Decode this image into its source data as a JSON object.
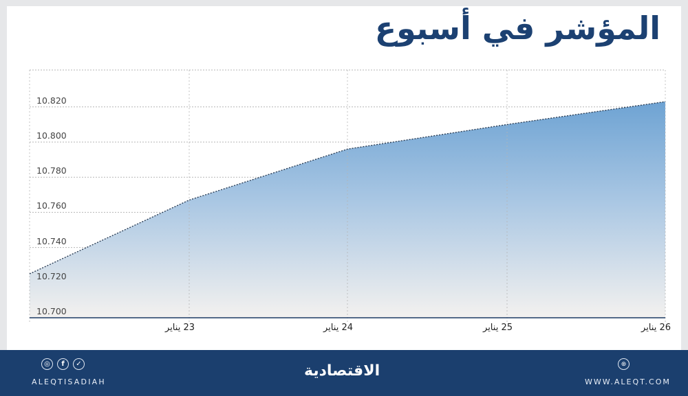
{
  "header": {
    "title": "المؤشر في أسبوع"
  },
  "chart_data": {
    "type": "area",
    "title": "المؤشر في أسبوع",
    "xlabel": "",
    "ylabel": "",
    "categories": [
      "",
      "23 يناير",
      "24 يناير",
      "25 يناير",
      "26 يناير"
    ],
    "values": [
      10.725,
      10.767,
      10.796,
      10.81,
      10.823
    ],
    "y_ticks": [
      "10.700",
      "10.720",
      "10.740",
      "10.760",
      "10.780",
      "10.800",
      "10.820"
    ],
    "x_ticks": [
      "23 يناير",
      "24 يناير",
      "25 يناير",
      "26 يناير"
    ],
    "ylim": [
      10.7,
      10.84
    ],
    "grid": true,
    "legend": "none",
    "colors": {
      "fill_top": "#6ea3d3",
      "fill_bottom": "#f3f1ef",
      "line": "#2c3e55",
      "grid": "#b5b5b5",
      "baseline": "#1c3a63"
    }
  },
  "footer": {
    "social_icons": [
      "instagram-icon",
      "facebook-icon",
      "twitter-icon"
    ],
    "social_glyphs": [
      "◎",
      "f",
      "✓"
    ],
    "handle": "ALEQTISADIAH",
    "brand": "الاقتصادية",
    "web_glyph": "⊛",
    "website": "WWW.ALEQT.COM",
    "background": "#1b3f6e"
  }
}
